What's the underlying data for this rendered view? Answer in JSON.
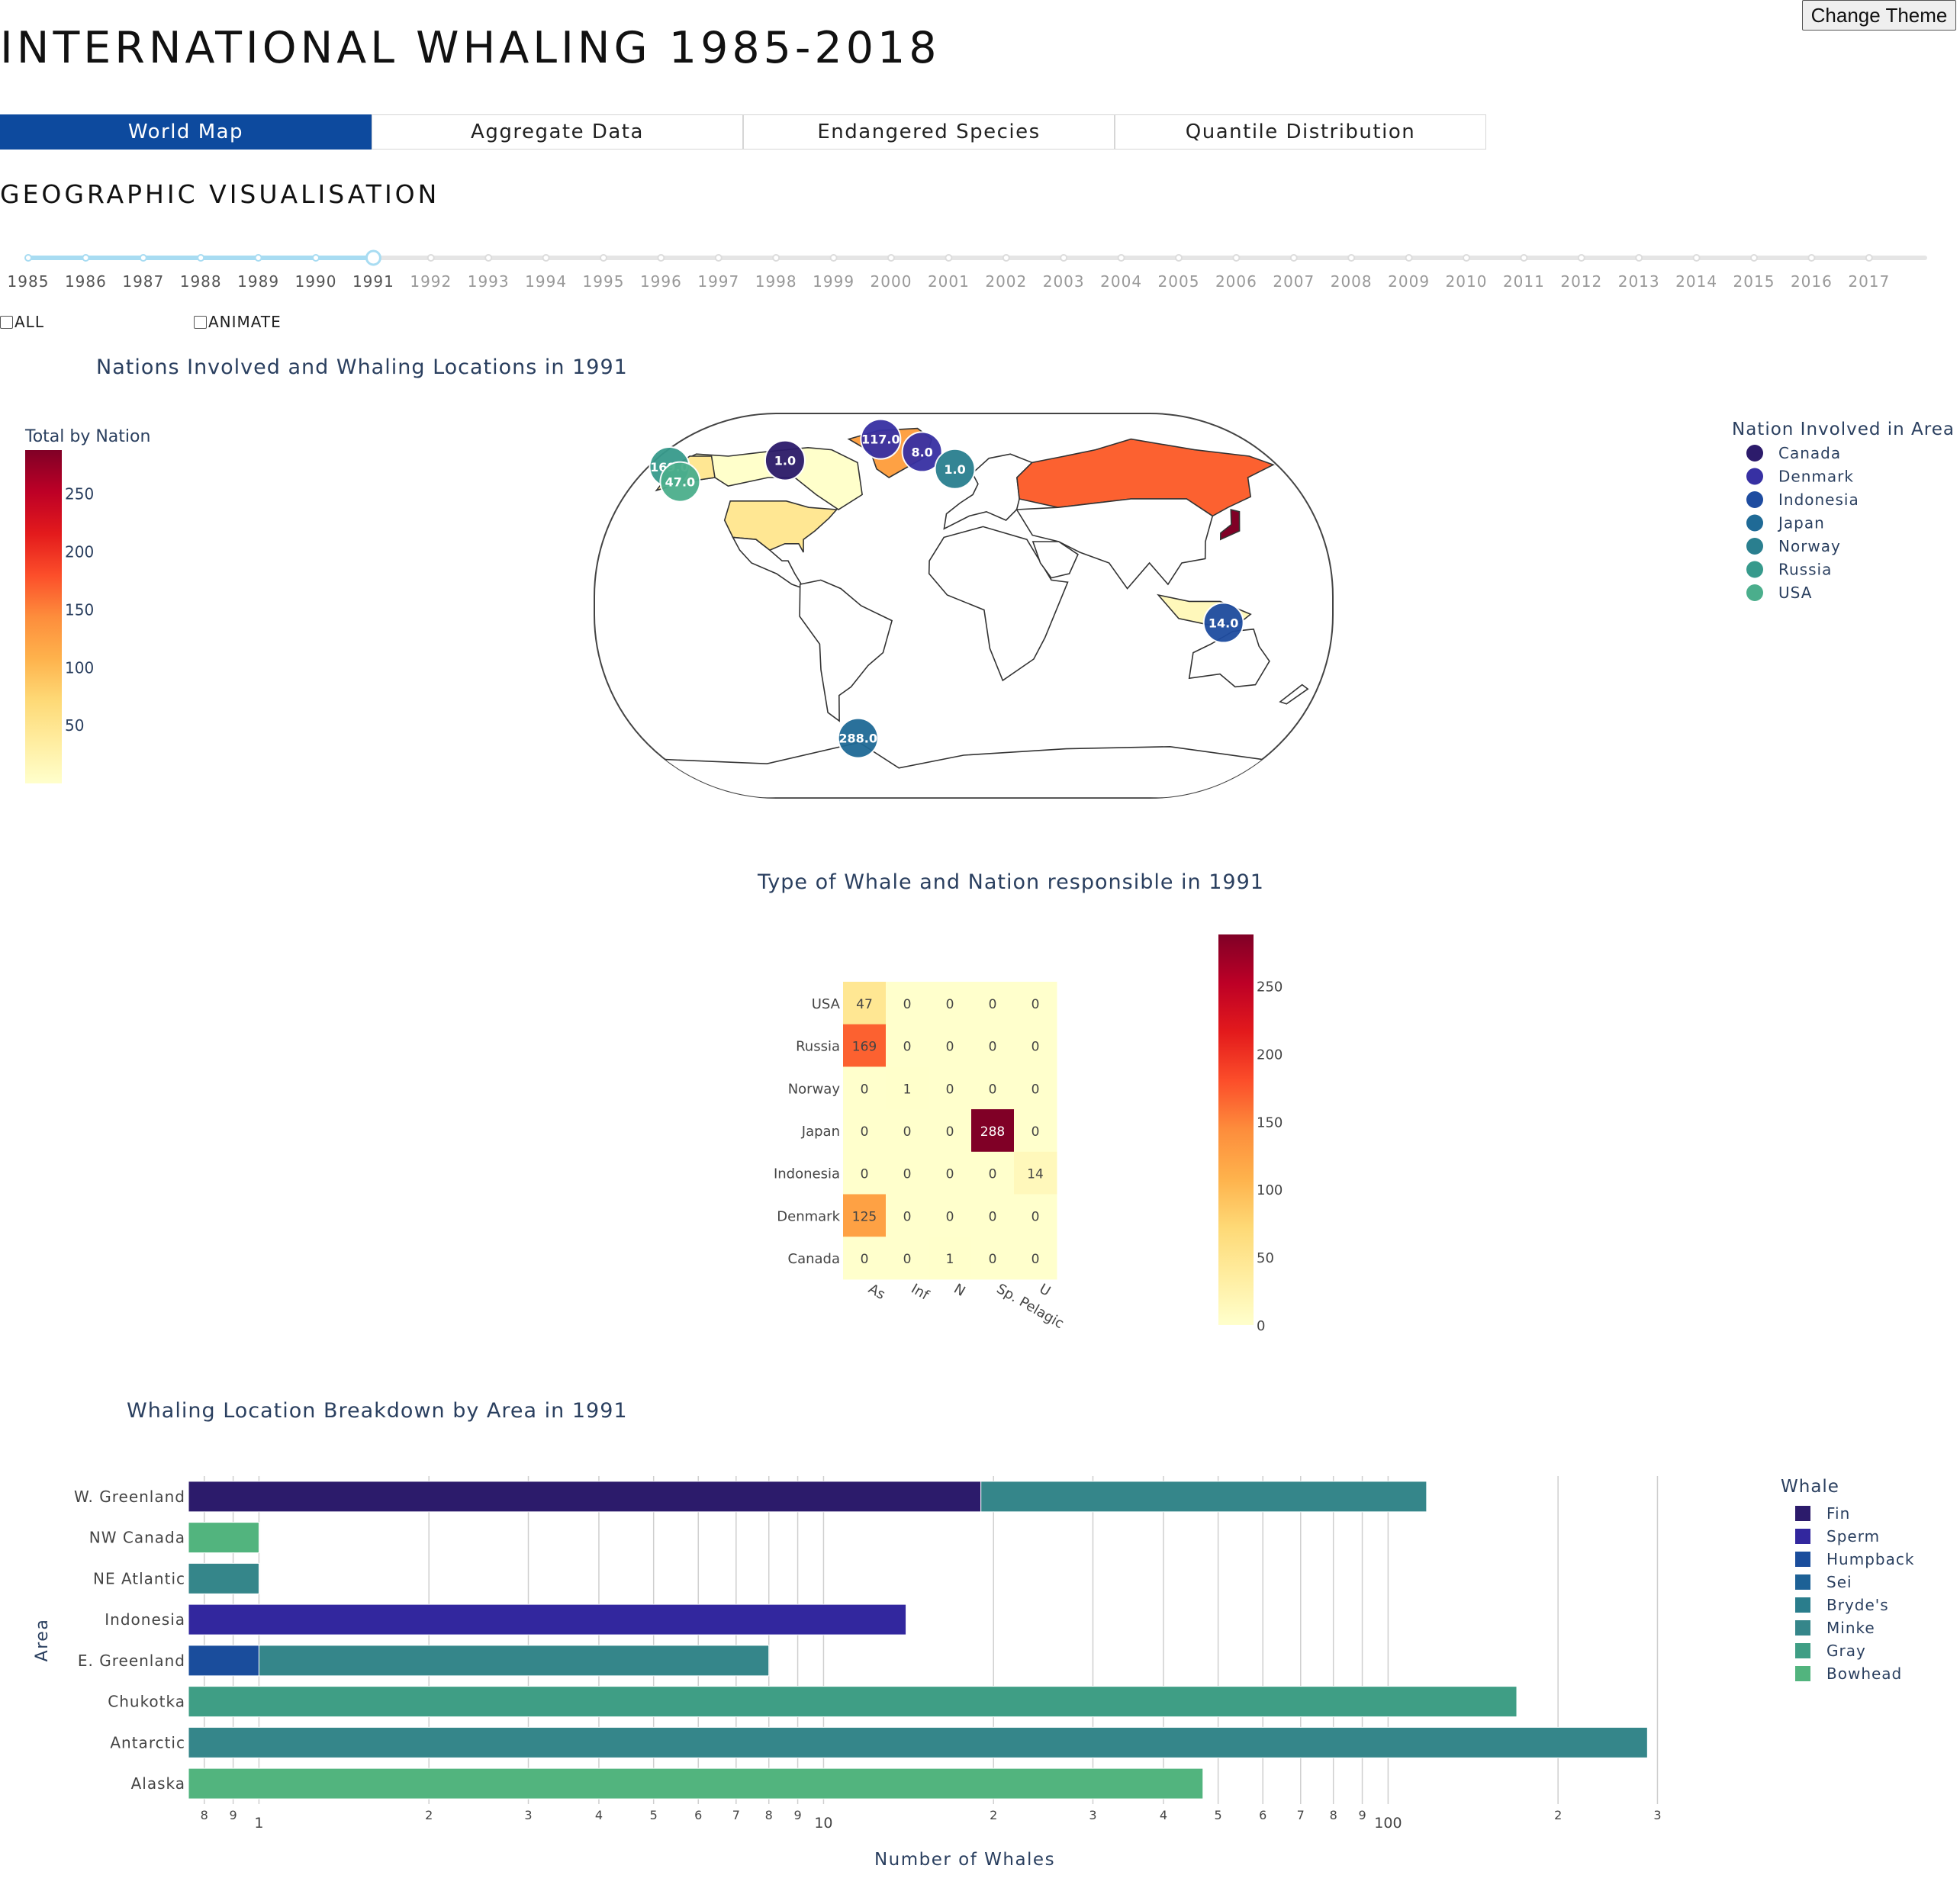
{
  "header": {
    "title": "INTERNATIONAL WHALING 1985-2018",
    "theme_button": "Change Theme"
  },
  "tabs": [
    {
      "label": "World Map",
      "active": true
    },
    {
      "label": "Aggregate Data",
      "active": false
    },
    {
      "label": "Endangered Species",
      "active": false
    },
    {
      "label": "Quantile Distribution",
      "active": false
    }
  ],
  "section_title": "GEOGRAPHIC VISUALISATION",
  "slider": {
    "years": [
      "1985",
      "1986",
      "1987",
      "1988",
      "1989",
      "1990",
      "1991",
      "1992",
      "1993",
      "1994",
      "1995",
      "1996",
      "1997",
      "1998",
      "1999",
      "2000",
      "2001",
      "2002",
      "2003",
      "2004",
      "2005",
      "2006",
      "2007",
      "2008",
      "2009",
      "2010",
      "2011",
      "2012",
      "2013",
      "2014",
      "2015",
      "2016",
      "2017"
    ],
    "selected": "1991",
    "active_color": "#a8dcf2",
    "inactive_color": "#e5e5e5"
  },
  "controls": {
    "all_label": "ALL",
    "all_checked": false,
    "animate_label": "ANIMATE",
    "animate_checked": false
  },
  "colors": {
    "scale": [
      "#ffffcc",
      "#ffeda0",
      "#fed976",
      "#feb24c",
      "#fd8d3c",
      "#fc4e2a",
      "#e31a1c",
      "#bd0026",
      "#800026"
    ],
    "nations": {
      "Canada": "#2c1b6b",
      "Denmark": "#3730a3",
      "Indonesia": "#1e4ca0",
      "Japan": "#1f6a96",
      "Norway": "#2a7f8f",
      "Russia": "#379a8c",
      "USA": "#4bae8c"
    },
    "whales": {
      "Fin": "#2c1b6b",
      "Sperm": "#32279e",
      "Humpback": "#1a4d9c",
      "Sei": "#1d6196",
      "Bryde's": "#2a7d8c",
      "Minke": "#35868a",
      "Gray": "#3f9e85",
      "Bowhead": "#52b47e"
    }
  },
  "chart_data": [
    {
      "type": "map",
      "title": "Nations Involved and Whaling Locations in 1991",
      "colorbar_title": "Total by Nation",
      "colorbar_ticks": [
        50,
        100,
        150,
        200,
        250
      ],
      "range": [
        0,
        288
      ],
      "countries": [
        {
          "name": "USA",
          "value": 47
        },
        {
          "name": "Canada",
          "value": 1
        },
        {
          "name": "Russia",
          "value": 169
        },
        {
          "name": "Japan",
          "value": 288
        },
        {
          "name": "Indonesia",
          "value": 14
        },
        {
          "name": "Denmark",
          "value": 125
        }
      ],
      "markers": [
        {
          "label": "169.0",
          "nation": "Russia",
          "lon": -170,
          "lat": 65
        },
        {
          "label": "47.0",
          "nation": "USA",
          "lon": -158,
          "lat": 58
        },
        {
          "label": "1.0",
          "nation": "Canada",
          "lon": -105,
          "lat": 68
        },
        {
          "label": "117.0",
          "nation": "Denmark",
          "lon": -52,
          "lat": 78
        },
        {
          "label": "8.0",
          "nation": "Denmark",
          "lon": -25,
          "lat": 72
        },
        {
          "label": "1.0",
          "nation": "Norway",
          "lon": -5,
          "lat": 64
        },
        {
          "label": "14.0",
          "nation": "Indonesia",
          "lon": 127,
          "lat": -8
        },
        {
          "label": "288.0",
          "nation": "Japan",
          "lon": -60,
          "lat": -62
        }
      ],
      "legend_title": "Nation Involved in Area",
      "legend": [
        "Canada",
        "Denmark",
        "Indonesia",
        "Japan",
        "Norway",
        "Russia",
        "USA"
      ]
    },
    {
      "type": "heatmap",
      "title": "Type of Whale and Nation responsible in 1991",
      "x": [
        "As",
        "Inf",
        "N",
        "Sp. Pelagic",
        "U"
      ],
      "y": [
        "USA",
        "Russia",
        "Norway",
        "Japan",
        "Indonesia",
        "Denmark",
        "Canada"
      ],
      "z": [
        [
          47,
          0,
          0,
          0,
          0
        ],
        [
          169,
          0,
          0,
          0,
          0
        ],
        [
          0,
          1,
          0,
          0,
          0
        ],
        [
          0,
          0,
          0,
          288,
          0
        ],
        [
          0,
          0,
          0,
          0,
          14
        ],
        [
          125,
          0,
          0,
          0,
          0
        ],
        [
          0,
          0,
          1,
          0,
          0
        ]
      ],
      "range": [
        0,
        288
      ],
      "colorbar_ticks": [
        0,
        50,
        100,
        150,
        200,
        250
      ]
    },
    {
      "type": "bar",
      "orientation": "horizontal",
      "stacked": true,
      "x_scale": "log",
      "title": "Whaling Location Breakdown by Area in 1991",
      "xlabel": "Number of Whales",
      "ylabel": "Area",
      "xlim": [
        0.75,
        350
      ],
      "categories": [
        "W. Greenland",
        "NW Canada",
        "NE Atlantic",
        "Indonesia",
        "E. Greenland",
        "Chukotka",
        "Antarctic",
        "Alaska"
      ],
      "series": [
        {
          "name": "Fin",
          "values": [
            19,
            0,
            0,
            0,
            0,
            0,
            0,
            0
          ]
        },
        {
          "name": "Sperm",
          "values": [
            0,
            0,
            0,
            14,
            0,
            0,
            0,
            0
          ]
        },
        {
          "name": "Humpback",
          "values": [
            0,
            0,
            0,
            0,
            1,
            0,
            0,
            0
          ]
        },
        {
          "name": "Sei",
          "values": [
            0,
            0,
            0,
            0,
            0,
            0,
            0,
            0
          ]
        },
        {
          "name": "Bryde's",
          "values": [
            0,
            0,
            0,
            0,
            0,
            0,
            0,
            0
          ]
        },
        {
          "name": "Minke",
          "values": [
            98,
            0,
            1,
            0,
            7,
            0,
            288,
            0
          ]
        },
        {
          "name": "Gray",
          "values": [
            0,
            0,
            0,
            0,
            0,
            169,
            0,
            0
          ]
        },
        {
          "name": "Bowhead",
          "values": [
            0,
            1,
            0,
            0,
            0,
            0,
            0,
            47
          ]
        }
      ],
      "legend_title": "Whale",
      "ticks": [
        {
          "v": 0.8,
          "t": "8"
        },
        {
          "v": 0.9,
          "t": "9"
        },
        {
          "v": 1,
          "t": "1"
        },
        {
          "v": 2,
          "t": "2"
        },
        {
          "v": 3,
          "t": "3"
        },
        {
          "v": 4,
          "t": "4"
        },
        {
          "v": 5,
          "t": "5"
        },
        {
          "v": 6,
          "t": "6"
        },
        {
          "v": 7,
          "t": "7"
        },
        {
          "v": 8,
          "t": "8"
        },
        {
          "v": 9,
          "t": "9"
        },
        {
          "v": 10,
          "t": "10"
        },
        {
          "v": 20,
          "t": "2"
        },
        {
          "v": 30,
          "t": "3"
        },
        {
          "v": 40,
          "t": "4"
        },
        {
          "v": 50,
          "t": "5"
        },
        {
          "v": 60,
          "t": "6"
        },
        {
          "v": 70,
          "t": "7"
        },
        {
          "v": 80,
          "t": "8"
        },
        {
          "v": 90,
          "t": "9"
        },
        {
          "v": 100,
          "t": "100"
        },
        {
          "v": 200,
          "t": "2"
        },
        {
          "v": 300,
          "t": "3"
        }
      ]
    }
  ]
}
